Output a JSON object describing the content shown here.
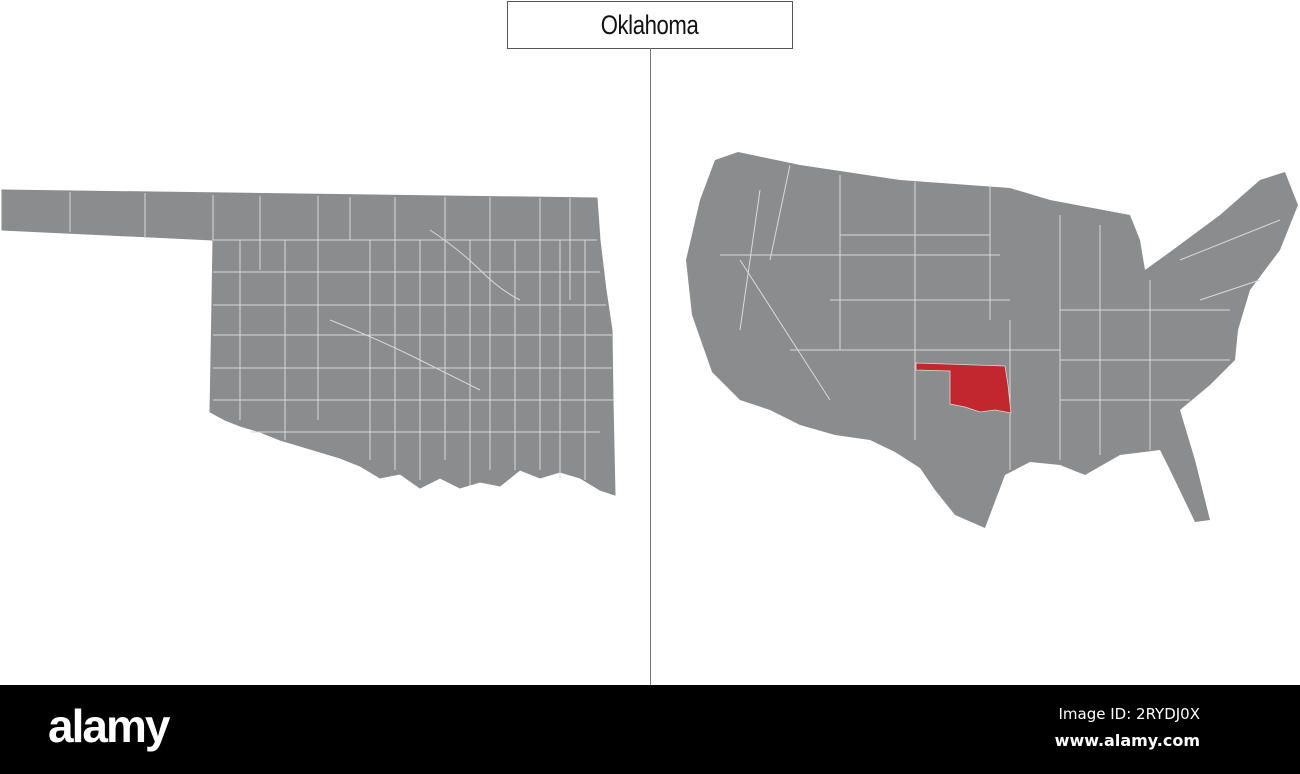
{
  "title": "Oklahoma",
  "colors": {
    "land": "#8a8c8e",
    "border": "#d9d9d9",
    "highlight": "#c1272d",
    "footer": "#000000"
  },
  "maps": {
    "left": {
      "region": "Oklahoma counties"
    },
    "right": {
      "region": "United States",
      "highlighted_state": "Oklahoma"
    }
  },
  "footer": {
    "logo": "alamy",
    "image_id": "Image ID: 2RYDJ0X",
    "site": "www.alamy.com"
  }
}
